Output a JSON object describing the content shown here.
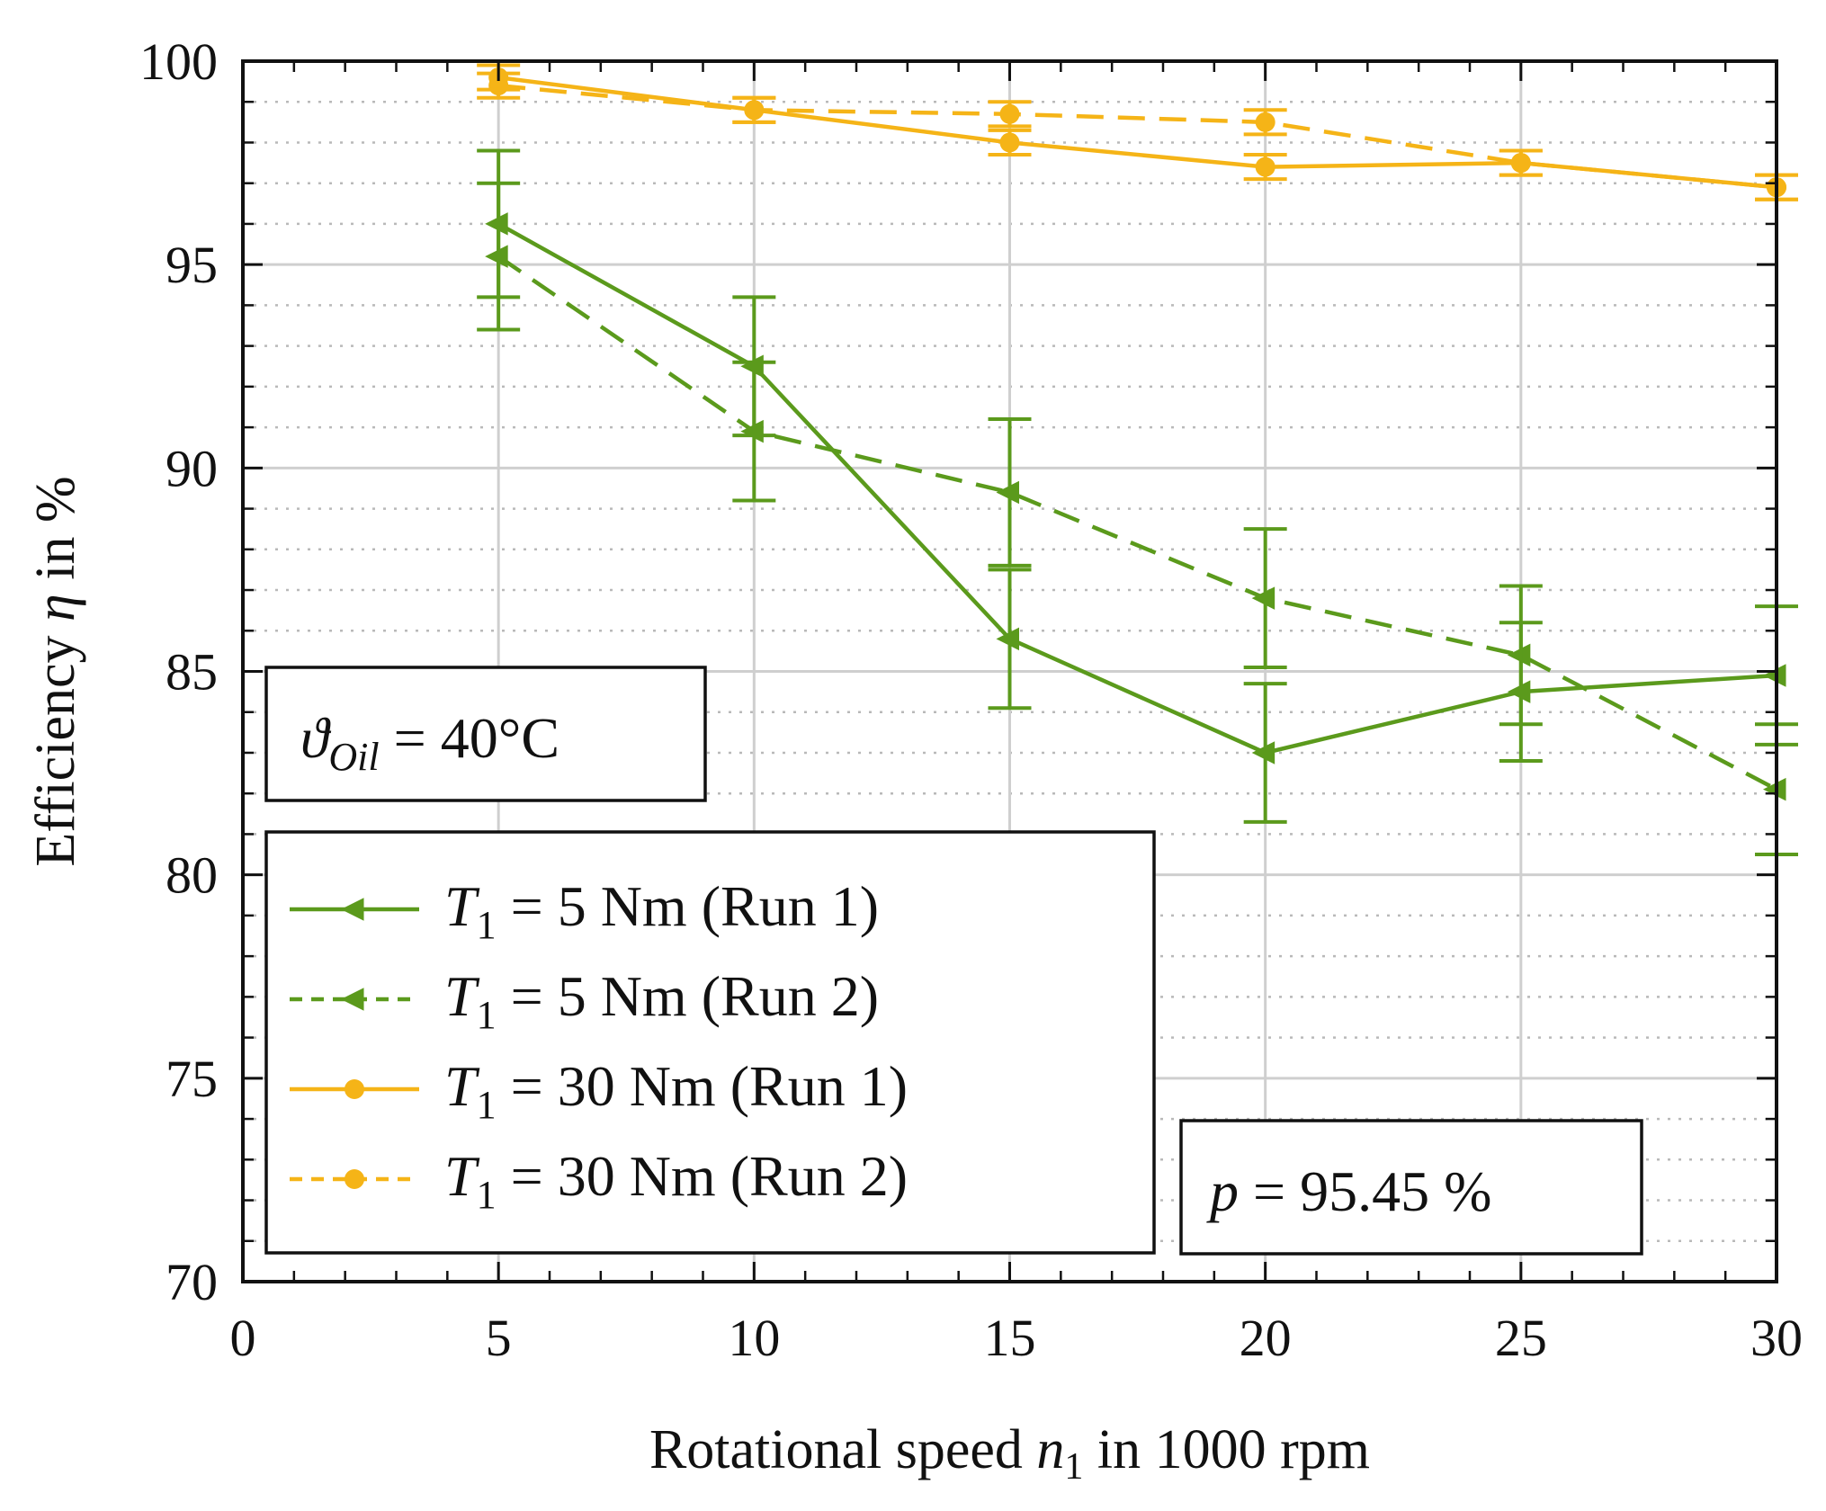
{
  "chart_data": {
    "type": "line",
    "xlabel": {
      "pre": "Rotational speed ",
      "var": "n",
      "sub": "1",
      "post": " in 1000 rpm"
    },
    "ylabel": {
      "pre": "Efficiency ",
      "var": "η",
      "post": " in %"
    },
    "xlim": [
      0,
      30
    ],
    "ylim": [
      70,
      100
    ],
    "xticks": [
      "0",
      "5",
      "10",
      "15",
      "20",
      "25",
      "30"
    ],
    "yticks": [
      "70",
      "75",
      "80",
      "85",
      "90",
      "95",
      "100"
    ],
    "grid": true,
    "minor_grid": true,
    "series": [
      {
        "name": "T1 = 5 Nm (Run 1)",
        "var": "T",
        "sub": "1",
        "label": " = 5 Nm (Run 1)",
        "color": "#5b9a1c",
        "dash": "solid",
        "marker": "triangle-left",
        "x": [
          5,
          10,
          15,
          20,
          25,
          30
        ],
        "y": [
          96.0,
          92.5,
          85.8,
          83.0,
          84.5,
          84.9
        ],
        "err_low": [
          1.8,
          1.7,
          1.7,
          1.7,
          1.7,
          1.7
        ],
        "err_high": [
          1.8,
          1.7,
          1.7,
          1.7,
          1.7,
          1.7
        ]
      },
      {
        "name": "T1 = 5 Nm (Run 2)",
        "var": "T",
        "sub": "1",
        "label": " = 5 Nm (Run 2)",
        "color": "#5b9a1c",
        "dash": "dashed",
        "marker": "triangle-left",
        "x": [
          5,
          10,
          15,
          20,
          25,
          30
        ],
        "y": [
          95.2,
          90.9,
          89.4,
          86.8,
          85.4,
          82.1
        ],
        "err_low": [
          1.8,
          1.7,
          1.8,
          1.7,
          1.7,
          1.6
        ],
        "err_high": [
          1.8,
          1.7,
          1.8,
          1.7,
          1.7,
          1.6
        ]
      },
      {
        "name": "T1 = 30 Nm (Run 1)",
        "var": "T",
        "sub": "1",
        "label": " = 30 Nm (Run 1)",
        "color": "#f5b417",
        "dash": "solid",
        "marker": "circle",
        "x": [
          5,
          10,
          15,
          20,
          25,
          30
        ],
        "y": [
          99.6,
          98.8,
          98.0,
          97.4,
          97.5,
          96.9
        ],
        "err_low": [
          0.3,
          0.3,
          0.3,
          0.3,
          0.3,
          0.3
        ],
        "err_high": [
          0.3,
          0.3,
          0.3,
          0.3,
          0.3,
          0.3
        ]
      },
      {
        "name": "T1 = 30 Nm (Run 2)",
        "var": "T",
        "sub": "1",
        "label": " = 30 Nm (Run 2)",
        "color": "#f5b417",
        "dash": "dashed",
        "marker": "circle",
        "x": [
          5,
          10,
          15,
          20,
          25,
          30
        ],
        "y": [
          99.4,
          98.8,
          98.7,
          98.5,
          97.5,
          96.9
        ],
        "err_low": [
          0.3,
          0.3,
          0.3,
          0.3,
          0.3,
          0.3
        ],
        "err_high": [
          0.3,
          0.3,
          0.3,
          0.3,
          0.3,
          0.3
        ]
      }
    ],
    "legend_position": "bottom-left",
    "annotations": [
      {
        "id": "oil",
        "var": "ϑ",
        "sub": "Oil",
        "post": " = 40°C",
        "position": "left-middle"
      },
      {
        "id": "p",
        "var": "p",
        "post": " = 95.45 %",
        "position": "bottom-right"
      }
    ]
  }
}
